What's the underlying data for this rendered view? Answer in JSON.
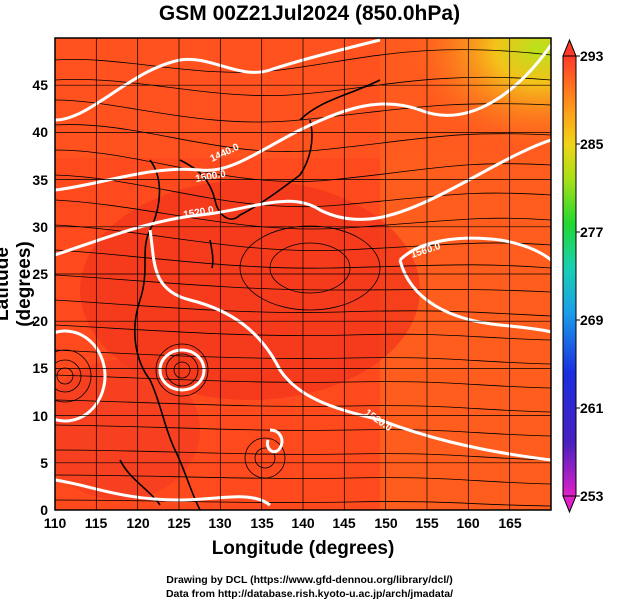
{
  "map": {
    "title": "GSM 00Z21Jul2024 (850.0hPa)",
    "xlabel": "Longitude (degrees)",
    "ylabel": "Latitude  (degrees)",
    "x_ticks": [
      "110",
      "115",
      "120",
      "125",
      "130",
      "135",
      "140",
      "145",
      "150",
      "155",
      "160",
      "165"
    ],
    "y_ticks": [
      "0",
      "5",
      "10",
      "15",
      "20",
      "25",
      "30",
      "35",
      "40",
      "45"
    ],
    "colorbar_ticks": [
      "293",
      "285",
      "277",
      "269",
      "261",
      "253"
    ],
    "contour_labels": [
      "1440.0",
      "1500.0",
      "1520.0",
      "1560.0",
      "1520.0"
    ],
    "credit_line1": "Drawing by DCL (https://www.gfd-dennou.org/library/dcl/)",
    "credit_line2": "Data from http://database.rish.kyoto-u.ac.jp/arch/jmadata/"
  },
  "chart_data": {
    "type": "heatmap",
    "title": "GSM 00Z21Jul2024 (850.0hPa)",
    "xlabel": "Longitude (degrees)",
    "ylabel": "Latitude  (degrees)",
    "xlim": [
      110,
      170
    ],
    "ylim": [
      0,
      50
    ],
    "colorbar_range": [
      253,
      293
    ],
    "colorbar_ticks": [
      293,
      285,
      277,
      269,
      261,
      253
    ],
    "contour_labels": [
      "1440.0",
      "1500.0",
      "1520.0",
      "1560.0",
      "1520.0"
    ],
    "colors": {
      "warm": "#ff3a1a",
      "hot": "#f2341c",
      "mild": "#ff7a1e",
      "cool": "#c9e01a",
      "contour": "#ffffff"
    }
  }
}
